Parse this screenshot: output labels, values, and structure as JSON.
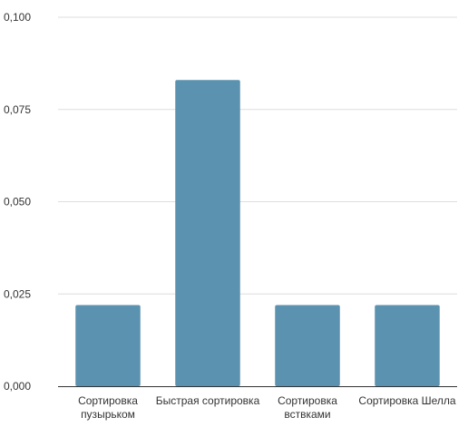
{
  "chart_data": {
    "type": "bar",
    "title": "",
    "xlabel": "",
    "ylabel": "",
    "categories": [
      [
        "Сортировка",
        "пузырьком"
      ],
      [
        "Быстрая сортировка"
      ],
      [
        "Сортировка",
        "вствками"
      ],
      [
        "Сортировка Шелла"
      ]
    ],
    "values": [
      0.022,
      0.083,
      0.022,
      0.022
    ],
    "ylim": [
      0,
      0.1
    ],
    "yticks": [
      0,
      0.025,
      0.05,
      0.075,
      0.1
    ],
    "ytick_labels": [
      "0,000",
      "0,025",
      "0,050",
      "0,075",
      "0,100"
    ],
    "bar_color": "#5b92b0",
    "grid": true,
    "legend": "none"
  }
}
